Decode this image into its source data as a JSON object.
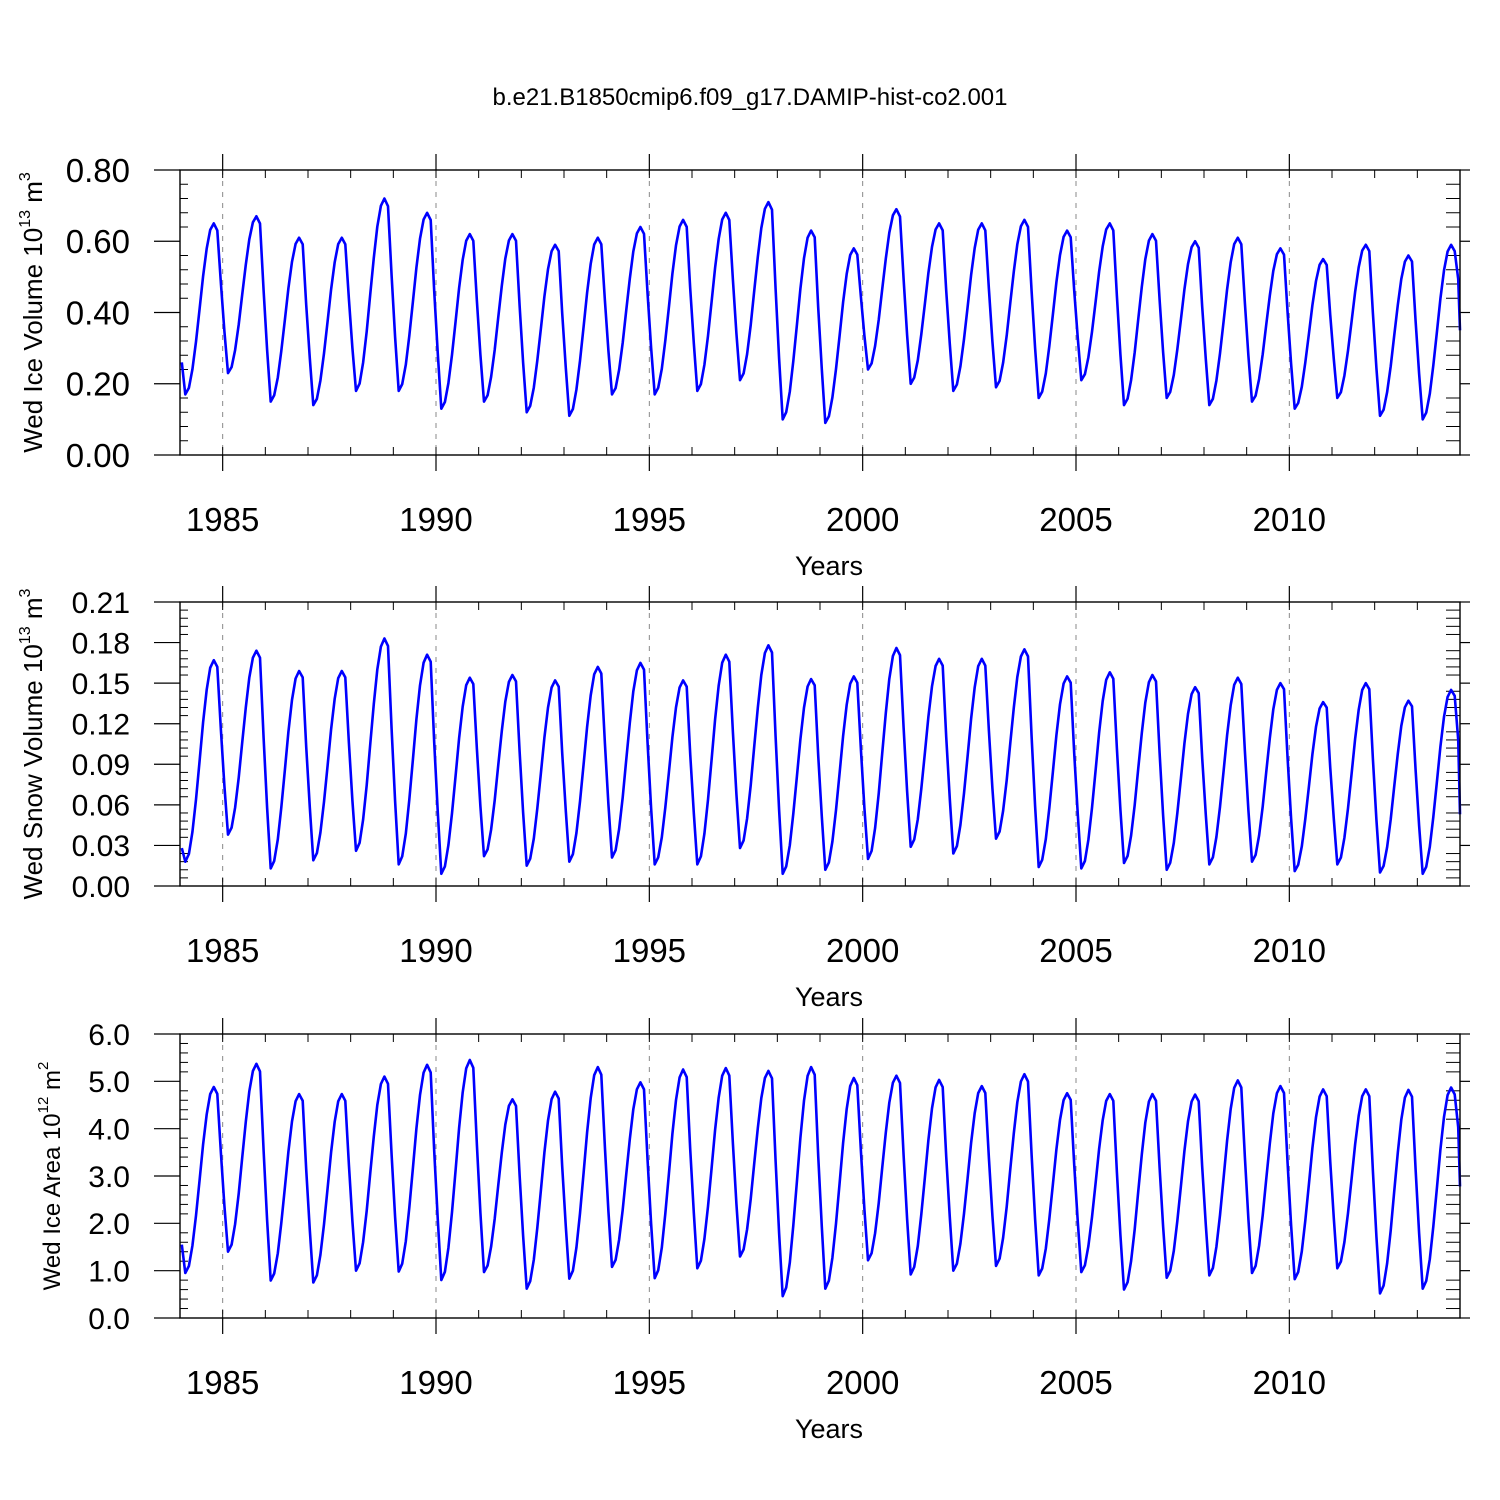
{
  "figure": {
    "title": "b.e21.B1850cmip6.f09_g17.DAMIP-hist-co2.001",
    "line_color": "#0000ff",
    "axis_color": "#000000",
    "grid_color": "#888888"
  },
  "chart_data": [
    {
      "type": "line",
      "name": "Wed Ice Volume",
      "ylabel": "Wed Ice Volume 10",
      "ylabel_exp": "13",
      "ylabel_unit": " m",
      "ylabel_unit_exp": "3",
      "xlabel": "Years",
      "xlim": [
        1984.0,
        2014.0
      ],
      "ylim": [
        0.0,
        0.8
      ],
      "yticks": [
        0.0,
        0.2,
        0.4,
        0.6,
        0.8
      ],
      "ytick_labels": [
        "0.00",
        "0.20",
        "0.40",
        "0.60",
        "0.80"
      ],
      "xticks": [
        1985,
        1990,
        1995,
        2000,
        2005,
        2010
      ],
      "xtick_labels": [
        "1985",
        "1990",
        "1995",
        "2000",
        "2005",
        "2010"
      ],
      "gridlines_x": [
        1985,
        1990,
        1995,
        2000,
        2005,
        2010
      ],
      "year_start": 1984,
      "annual_max": [
        0.65,
        0.67,
        0.61,
        0.61,
        0.72,
        0.68,
        0.62,
        0.62,
        0.59,
        0.61,
        0.64,
        0.66,
        0.68,
        0.71,
        0.63,
        0.58,
        0.69,
        0.65,
        0.65,
        0.66,
        0.63,
        0.65,
        0.62,
        0.6,
        0.61,
        0.58,
        0.55,
        0.59,
        0.56,
        0.59
      ],
      "annual_min": [
        0.17,
        0.23,
        0.15,
        0.14,
        0.18,
        0.18,
        0.13,
        0.15,
        0.12,
        0.11,
        0.17,
        0.17,
        0.18,
        0.21,
        0.1,
        0.09,
        0.24,
        0.2,
        0.18,
        0.19,
        0.16,
        0.21,
        0.14,
        0.16,
        0.14,
        0.15,
        0.13,
        0.16,
        0.11,
        0.1
      ],
      "start_value": 0.26,
      "end_value": 0.35
    },
    {
      "type": "line",
      "name": "Wed Snow Volume",
      "ylabel": "Wed Snow Volume 10",
      "ylabel_exp": "13",
      "ylabel_unit": " m",
      "ylabel_unit_exp": "3",
      "xlabel": "Years",
      "xlim": [
        1984.0,
        2014.0
      ],
      "ylim": [
        0.0,
        0.21
      ],
      "yticks": [
        0.0,
        0.03,
        0.06,
        0.09,
        0.12,
        0.15,
        0.18,
        0.21
      ],
      "ytick_labels": [
        "0.00",
        "0.03",
        "0.06",
        "0.09",
        "0.12",
        "0.15",
        "0.18",
        "0.21"
      ],
      "xticks": [
        1985,
        1990,
        1995,
        2000,
        2005,
        2010
      ],
      "xtick_labels": [
        "1985",
        "1990",
        "1995",
        "2000",
        "2005",
        "2010"
      ],
      "gridlines_x": [
        1985,
        1990,
        1995,
        2000,
        2005,
        2010
      ],
      "year_start": 1984,
      "annual_max": [
        0.167,
        0.174,
        0.159,
        0.159,
        0.183,
        0.171,
        0.154,
        0.156,
        0.152,
        0.162,
        0.165,
        0.152,
        0.171,
        0.178,
        0.153,
        0.155,
        0.176,
        0.168,
        0.168,
        0.175,
        0.155,
        0.158,
        0.156,
        0.147,
        0.154,
        0.15,
        0.136,
        0.15,
        0.137,
        0.145
      ],
      "annual_min": [
        0.018,
        0.038,
        0.013,
        0.019,
        0.026,
        0.016,
        0.009,
        0.022,
        0.015,
        0.018,
        0.021,
        0.016,
        0.016,
        0.028,
        0.009,
        0.012,
        0.02,
        0.029,
        0.024,
        0.035,
        0.014,
        0.013,
        0.017,
        0.012,
        0.016,
        0.018,
        0.011,
        0.016,
        0.01,
        0.009
      ],
      "start_value": 0.028,
      "end_value": 0.053
    },
    {
      "type": "line",
      "name": "Wed Ice Area",
      "ylabel": "Wed Ice Area 10",
      "ylabel_exp": "12",
      "ylabel_unit": " m",
      "ylabel_unit_exp": "2",
      "xlabel": "Years",
      "xlim": [
        1984.0,
        2014.0
      ],
      "ylim": [
        0.0,
        6.0
      ],
      "yticks": [
        0.0,
        1.0,
        2.0,
        3.0,
        4.0,
        5.0,
        6.0
      ],
      "ytick_labels": [
        "0.0",
        "1.0",
        "2.0",
        "3.0",
        "4.0",
        "5.0",
        "6.0"
      ],
      "xticks": [
        1985,
        1990,
        1995,
        2000,
        2005,
        2010
      ],
      "xtick_labels": [
        "1985",
        "1990",
        "1995",
        "2000",
        "2005",
        "2010"
      ],
      "gridlines_x": [
        1985,
        1990,
        1995,
        2000,
        2005,
        2010
      ],
      "year_start": 1984,
      "annual_max": [
        4.88,
        5.37,
        4.73,
        4.73,
        5.1,
        5.35,
        5.45,
        4.62,
        4.78,
        5.3,
        4.98,
        5.25,
        5.28,
        5.22,
        5.3,
        5.07,
        5.12,
        5.03,
        4.9,
        5.15,
        4.75,
        4.73,
        4.73,
        4.72,
        5.02,
        4.9,
        4.83,
        4.83,
        4.82,
        4.87
      ],
      "annual_min": [
        0.95,
        1.4,
        0.79,
        0.75,
        1.0,
        0.98,
        0.8,
        0.97,
        0.62,
        0.83,
        1.08,
        0.84,
        1.05,
        1.3,
        0.46,
        0.62,
        1.22,
        0.92,
        1.0,
        1.1,
        0.9,
        0.97,
        0.6,
        0.85,
        0.9,
        0.95,
        0.82,
        1.05,
        0.52,
        0.62
      ],
      "start_value": 1.55,
      "end_value": 2.78
    }
  ]
}
